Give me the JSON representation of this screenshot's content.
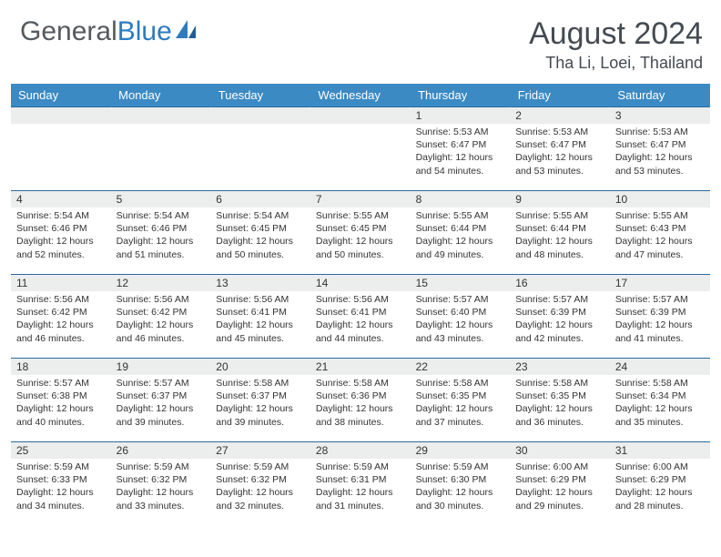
{
  "brand": {
    "name_a": "General",
    "name_b": "Blue"
  },
  "title": "August 2024",
  "location": "Tha Li, Loei, Thailand",
  "colors": {
    "header_bg": "#3b8ac4",
    "header_fg": "#ffffff",
    "cell_border": "#2a6aa0",
    "daynum_bg": "#eceded",
    "text": "#333333",
    "brand_gray": "#555a5f",
    "brand_blue": "#2f7bbf",
    "page_bg": "#ffffff"
  },
  "typography": {
    "title_fontsize": 34,
    "location_fontsize": 18,
    "header_fontsize": 13,
    "cell_fontsize": 10.5
  },
  "day_headers": [
    "Sunday",
    "Monday",
    "Tuesday",
    "Wednesday",
    "Thursday",
    "Friday",
    "Saturday"
  ],
  "weeks": [
    [
      {
        "day": "",
        "sunrise": "",
        "sunset": "",
        "daylight": ""
      },
      {
        "day": "",
        "sunrise": "",
        "sunset": "",
        "daylight": ""
      },
      {
        "day": "",
        "sunrise": "",
        "sunset": "",
        "daylight": ""
      },
      {
        "day": "",
        "sunrise": "",
        "sunset": "",
        "daylight": ""
      },
      {
        "day": "1",
        "sunrise": "Sunrise: 5:53 AM",
        "sunset": "Sunset: 6:47 PM",
        "daylight": "Daylight: 12 hours and 54 minutes."
      },
      {
        "day": "2",
        "sunrise": "Sunrise: 5:53 AM",
        "sunset": "Sunset: 6:47 PM",
        "daylight": "Daylight: 12 hours and 53 minutes."
      },
      {
        "day": "3",
        "sunrise": "Sunrise: 5:53 AM",
        "sunset": "Sunset: 6:47 PM",
        "daylight": "Daylight: 12 hours and 53 minutes."
      }
    ],
    [
      {
        "day": "4",
        "sunrise": "Sunrise: 5:54 AM",
        "sunset": "Sunset: 6:46 PM",
        "daylight": "Daylight: 12 hours and 52 minutes."
      },
      {
        "day": "5",
        "sunrise": "Sunrise: 5:54 AM",
        "sunset": "Sunset: 6:46 PM",
        "daylight": "Daylight: 12 hours and 51 minutes."
      },
      {
        "day": "6",
        "sunrise": "Sunrise: 5:54 AM",
        "sunset": "Sunset: 6:45 PM",
        "daylight": "Daylight: 12 hours and 50 minutes."
      },
      {
        "day": "7",
        "sunrise": "Sunrise: 5:55 AM",
        "sunset": "Sunset: 6:45 PM",
        "daylight": "Daylight: 12 hours and 50 minutes."
      },
      {
        "day": "8",
        "sunrise": "Sunrise: 5:55 AM",
        "sunset": "Sunset: 6:44 PM",
        "daylight": "Daylight: 12 hours and 49 minutes."
      },
      {
        "day": "9",
        "sunrise": "Sunrise: 5:55 AM",
        "sunset": "Sunset: 6:44 PM",
        "daylight": "Daylight: 12 hours and 48 minutes."
      },
      {
        "day": "10",
        "sunrise": "Sunrise: 5:55 AM",
        "sunset": "Sunset: 6:43 PM",
        "daylight": "Daylight: 12 hours and 47 minutes."
      }
    ],
    [
      {
        "day": "11",
        "sunrise": "Sunrise: 5:56 AM",
        "sunset": "Sunset: 6:42 PM",
        "daylight": "Daylight: 12 hours and 46 minutes."
      },
      {
        "day": "12",
        "sunrise": "Sunrise: 5:56 AM",
        "sunset": "Sunset: 6:42 PM",
        "daylight": "Daylight: 12 hours and 46 minutes."
      },
      {
        "day": "13",
        "sunrise": "Sunrise: 5:56 AM",
        "sunset": "Sunset: 6:41 PM",
        "daylight": "Daylight: 12 hours and 45 minutes."
      },
      {
        "day": "14",
        "sunrise": "Sunrise: 5:56 AM",
        "sunset": "Sunset: 6:41 PM",
        "daylight": "Daylight: 12 hours and 44 minutes."
      },
      {
        "day": "15",
        "sunrise": "Sunrise: 5:57 AM",
        "sunset": "Sunset: 6:40 PM",
        "daylight": "Daylight: 12 hours and 43 minutes."
      },
      {
        "day": "16",
        "sunrise": "Sunrise: 5:57 AM",
        "sunset": "Sunset: 6:39 PM",
        "daylight": "Daylight: 12 hours and 42 minutes."
      },
      {
        "day": "17",
        "sunrise": "Sunrise: 5:57 AM",
        "sunset": "Sunset: 6:39 PM",
        "daylight": "Daylight: 12 hours and 41 minutes."
      }
    ],
    [
      {
        "day": "18",
        "sunrise": "Sunrise: 5:57 AM",
        "sunset": "Sunset: 6:38 PM",
        "daylight": "Daylight: 12 hours and 40 minutes."
      },
      {
        "day": "19",
        "sunrise": "Sunrise: 5:57 AM",
        "sunset": "Sunset: 6:37 PM",
        "daylight": "Daylight: 12 hours and 39 minutes."
      },
      {
        "day": "20",
        "sunrise": "Sunrise: 5:58 AM",
        "sunset": "Sunset: 6:37 PM",
        "daylight": "Daylight: 12 hours and 39 minutes."
      },
      {
        "day": "21",
        "sunrise": "Sunrise: 5:58 AM",
        "sunset": "Sunset: 6:36 PM",
        "daylight": "Daylight: 12 hours and 38 minutes."
      },
      {
        "day": "22",
        "sunrise": "Sunrise: 5:58 AM",
        "sunset": "Sunset: 6:35 PM",
        "daylight": "Daylight: 12 hours and 37 minutes."
      },
      {
        "day": "23",
        "sunrise": "Sunrise: 5:58 AM",
        "sunset": "Sunset: 6:35 PM",
        "daylight": "Daylight: 12 hours and 36 minutes."
      },
      {
        "day": "24",
        "sunrise": "Sunrise: 5:58 AM",
        "sunset": "Sunset: 6:34 PM",
        "daylight": "Daylight: 12 hours and 35 minutes."
      }
    ],
    [
      {
        "day": "25",
        "sunrise": "Sunrise: 5:59 AM",
        "sunset": "Sunset: 6:33 PM",
        "daylight": "Daylight: 12 hours and 34 minutes."
      },
      {
        "day": "26",
        "sunrise": "Sunrise: 5:59 AM",
        "sunset": "Sunset: 6:32 PM",
        "daylight": "Daylight: 12 hours and 33 minutes."
      },
      {
        "day": "27",
        "sunrise": "Sunrise: 5:59 AM",
        "sunset": "Sunset: 6:32 PM",
        "daylight": "Daylight: 12 hours and 32 minutes."
      },
      {
        "day": "28",
        "sunrise": "Sunrise: 5:59 AM",
        "sunset": "Sunset: 6:31 PM",
        "daylight": "Daylight: 12 hours and 31 minutes."
      },
      {
        "day": "29",
        "sunrise": "Sunrise: 5:59 AM",
        "sunset": "Sunset: 6:30 PM",
        "daylight": "Daylight: 12 hours and 30 minutes."
      },
      {
        "day": "30",
        "sunrise": "Sunrise: 6:00 AM",
        "sunset": "Sunset: 6:29 PM",
        "daylight": "Daylight: 12 hours and 29 minutes."
      },
      {
        "day": "31",
        "sunrise": "Sunrise: 6:00 AM",
        "sunset": "Sunset: 6:29 PM",
        "daylight": "Daylight: 12 hours and 28 minutes."
      }
    ]
  ]
}
